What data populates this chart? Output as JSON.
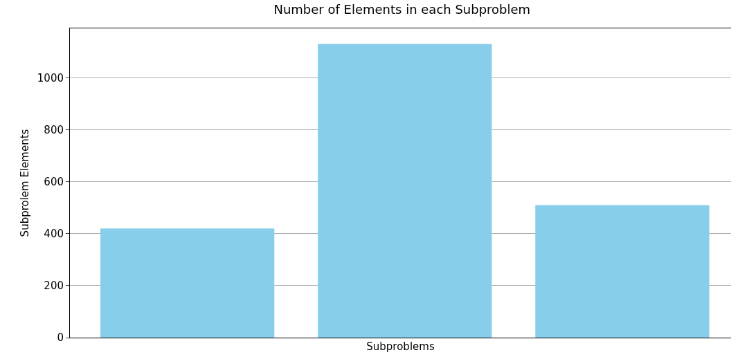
{
  "chart_data": {
    "type": "bar",
    "title": "Number of Elements in each Subproblem",
    "xlabel": "Subproblems",
    "ylabel": "Subprolem Elements",
    "categories": [
      null,
      null,
      null
    ],
    "values": [
      420,
      1130,
      510
    ],
    "color": "#87ceeb",
    "ylim": [
      0,
      1190
    ],
    "yticks": [
      0,
      200,
      400,
      600,
      800,
      1000
    ],
    "grid": "y"
  }
}
